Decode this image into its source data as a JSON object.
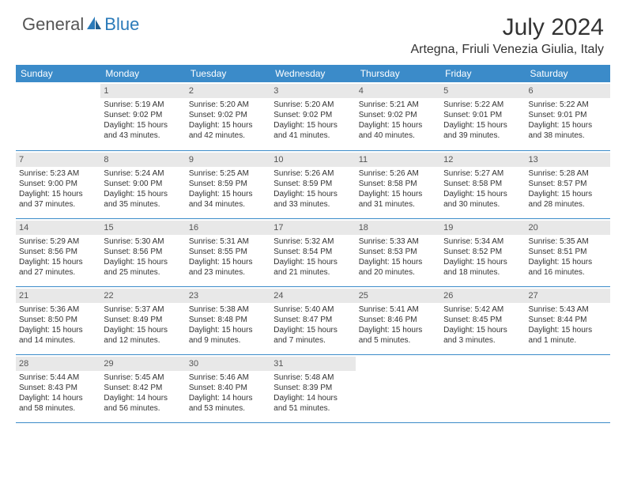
{
  "logo": {
    "text1": "General",
    "text2": "Blue",
    "icon_color": "#2a7ab9"
  },
  "title": "July 2024",
  "location": "Artegna, Friuli Venezia Giulia, Italy",
  "colors": {
    "header_bg": "#3b8bc9",
    "daynum_bg": "#e8e8e8",
    "border": "#3b8bc9",
    "text": "#333333",
    "logo_blue": "#2a7ab9",
    "background": "#ffffff"
  },
  "fonts": {
    "title_size": 30,
    "location_size": 16,
    "header_size": 12,
    "cell_size": 10
  },
  "weekdays": [
    "Sunday",
    "Monday",
    "Tuesday",
    "Wednesday",
    "Thursday",
    "Friday",
    "Saturday"
  ],
  "weeks": [
    [
      {
        "empty": true
      },
      {
        "day": "1",
        "sunrise": "Sunrise: 5:19 AM",
        "sunset": "Sunset: 9:02 PM",
        "daylight1": "Daylight: 15 hours",
        "daylight2": "and 43 minutes."
      },
      {
        "day": "2",
        "sunrise": "Sunrise: 5:20 AM",
        "sunset": "Sunset: 9:02 PM",
        "daylight1": "Daylight: 15 hours",
        "daylight2": "and 42 minutes."
      },
      {
        "day": "3",
        "sunrise": "Sunrise: 5:20 AM",
        "sunset": "Sunset: 9:02 PM",
        "daylight1": "Daylight: 15 hours",
        "daylight2": "and 41 minutes."
      },
      {
        "day": "4",
        "sunrise": "Sunrise: 5:21 AM",
        "sunset": "Sunset: 9:02 PM",
        "daylight1": "Daylight: 15 hours",
        "daylight2": "and 40 minutes."
      },
      {
        "day": "5",
        "sunrise": "Sunrise: 5:22 AM",
        "sunset": "Sunset: 9:01 PM",
        "daylight1": "Daylight: 15 hours",
        "daylight2": "and 39 minutes."
      },
      {
        "day": "6",
        "sunrise": "Sunrise: 5:22 AM",
        "sunset": "Sunset: 9:01 PM",
        "daylight1": "Daylight: 15 hours",
        "daylight2": "and 38 minutes."
      }
    ],
    [
      {
        "day": "7",
        "sunrise": "Sunrise: 5:23 AM",
        "sunset": "Sunset: 9:00 PM",
        "daylight1": "Daylight: 15 hours",
        "daylight2": "and 37 minutes."
      },
      {
        "day": "8",
        "sunrise": "Sunrise: 5:24 AM",
        "sunset": "Sunset: 9:00 PM",
        "daylight1": "Daylight: 15 hours",
        "daylight2": "and 35 minutes."
      },
      {
        "day": "9",
        "sunrise": "Sunrise: 5:25 AM",
        "sunset": "Sunset: 8:59 PM",
        "daylight1": "Daylight: 15 hours",
        "daylight2": "and 34 minutes."
      },
      {
        "day": "10",
        "sunrise": "Sunrise: 5:26 AM",
        "sunset": "Sunset: 8:59 PM",
        "daylight1": "Daylight: 15 hours",
        "daylight2": "and 33 minutes."
      },
      {
        "day": "11",
        "sunrise": "Sunrise: 5:26 AM",
        "sunset": "Sunset: 8:58 PM",
        "daylight1": "Daylight: 15 hours",
        "daylight2": "and 31 minutes."
      },
      {
        "day": "12",
        "sunrise": "Sunrise: 5:27 AM",
        "sunset": "Sunset: 8:58 PM",
        "daylight1": "Daylight: 15 hours",
        "daylight2": "and 30 minutes."
      },
      {
        "day": "13",
        "sunrise": "Sunrise: 5:28 AM",
        "sunset": "Sunset: 8:57 PM",
        "daylight1": "Daylight: 15 hours",
        "daylight2": "and 28 minutes."
      }
    ],
    [
      {
        "day": "14",
        "sunrise": "Sunrise: 5:29 AM",
        "sunset": "Sunset: 8:56 PM",
        "daylight1": "Daylight: 15 hours",
        "daylight2": "and 27 minutes."
      },
      {
        "day": "15",
        "sunrise": "Sunrise: 5:30 AM",
        "sunset": "Sunset: 8:56 PM",
        "daylight1": "Daylight: 15 hours",
        "daylight2": "and 25 minutes."
      },
      {
        "day": "16",
        "sunrise": "Sunrise: 5:31 AM",
        "sunset": "Sunset: 8:55 PM",
        "daylight1": "Daylight: 15 hours",
        "daylight2": "and 23 minutes."
      },
      {
        "day": "17",
        "sunrise": "Sunrise: 5:32 AM",
        "sunset": "Sunset: 8:54 PM",
        "daylight1": "Daylight: 15 hours",
        "daylight2": "and 21 minutes."
      },
      {
        "day": "18",
        "sunrise": "Sunrise: 5:33 AM",
        "sunset": "Sunset: 8:53 PM",
        "daylight1": "Daylight: 15 hours",
        "daylight2": "and 20 minutes."
      },
      {
        "day": "19",
        "sunrise": "Sunrise: 5:34 AM",
        "sunset": "Sunset: 8:52 PM",
        "daylight1": "Daylight: 15 hours",
        "daylight2": "and 18 minutes."
      },
      {
        "day": "20",
        "sunrise": "Sunrise: 5:35 AM",
        "sunset": "Sunset: 8:51 PM",
        "daylight1": "Daylight: 15 hours",
        "daylight2": "and 16 minutes."
      }
    ],
    [
      {
        "day": "21",
        "sunrise": "Sunrise: 5:36 AM",
        "sunset": "Sunset: 8:50 PM",
        "daylight1": "Daylight: 15 hours",
        "daylight2": "and 14 minutes."
      },
      {
        "day": "22",
        "sunrise": "Sunrise: 5:37 AM",
        "sunset": "Sunset: 8:49 PM",
        "daylight1": "Daylight: 15 hours",
        "daylight2": "and 12 minutes."
      },
      {
        "day": "23",
        "sunrise": "Sunrise: 5:38 AM",
        "sunset": "Sunset: 8:48 PM",
        "daylight1": "Daylight: 15 hours",
        "daylight2": "and 9 minutes."
      },
      {
        "day": "24",
        "sunrise": "Sunrise: 5:40 AM",
        "sunset": "Sunset: 8:47 PM",
        "daylight1": "Daylight: 15 hours",
        "daylight2": "and 7 minutes."
      },
      {
        "day": "25",
        "sunrise": "Sunrise: 5:41 AM",
        "sunset": "Sunset: 8:46 PM",
        "daylight1": "Daylight: 15 hours",
        "daylight2": "and 5 minutes."
      },
      {
        "day": "26",
        "sunrise": "Sunrise: 5:42 AM",
        "sunset": "Sunset: 8:45 PM",
        "daylight1": "Daylight: 15 hours",
        "daylight2": "and 3 minutes."
      },
      {
        "day": "27",
        "sunrise": "Sunrise: 5:43 AM",
        "sunset": "Sunset: 8:44 PM",
        "daylight1": "Daylight: 15 hours",
        "daylight2": "and 1 minute."
      }
    ],
    [
      {
        "day": "28",
        "sunrise": "Sunrise: 5:44 AM",
        "sunset": "Sunset: 8:43 PM",
        "daylight1": "Daylight: 14 hours",
        "daylight2": "and 58 minutes."
      },
      {
        "day": "29",
        "sunrise": "Sunrise: 5:45 AM",
        "sunset": "Sunset: 8:42 PM",
        "daylight1": "Daylight: 14 hours",
        "daylight2": "and 56 minutes."
      },
      {
        "day": "30",
        "sunrise": "Sunrise: 5:46 AM",
        "sunset": "Sunset: 8:40 PM",
        "daylight1": "Daylight: 14 hours",
        "daylight2": "and 53 minutes."
      },
      {
        "day": "31",
        "sunrise": "Sunrise: 5:48 AM",
        "sunset": "Sunset: 8:39 PM",
        "daylight1": "Daylight: 14 hours",
        "daylight2": "and 51 minutes."
      },
      {
        "empty": true
      },
      {
        "empty": true
      },
      {
        "empty": true
      }
    ]
  ]
}
